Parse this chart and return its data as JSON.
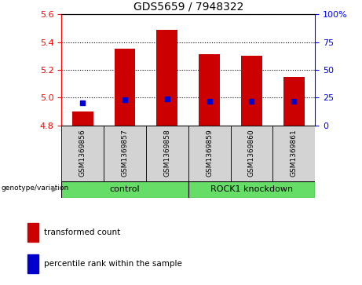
{
  "title": "GDS5659 / 7948322",
  "samples": [
    "GSM1369856",
    "GSM1369857",
    "GSM1369858",
    "GSM1369859",
    "GSM1369860",
    "GSM1369861"
  ],
  "transformed_counts": [
    4.9,
    5.35,
    5.49,
    5.31,
    5.3,
    5.15
  ],
  "percentile_ranks": [
    20,
    23,
    24,
    22,
    22,
    22
  ],
  "ylim_left": [
    4.8,
    5.6
  ],
  "ylim_right": [
    0,
    100
  ],
  "yticks_left": [
    4.8,
    5.0,
    5.2,
    5.4,
    5.6
  ],
  "yticks_right": [
    0,
    25,
    50,
    75,
    100
  ],
  "bar_color": "#cc0000",
  "dot_color": "#0000cc",
  "bar_bottom": 4.8,
  "bar_width": 0.5,
  "sample_row_color": "#d3d3d3",
  "green_color": "#66dd66",
  "legend_items": [
    "transformed count",
    "percentile rank within the sample"
  ],
  "legend_colors": [
    "#cc0000",
    "#0000cc"
  ],
  "genotype_label": "genotype/variation",
  "groups": [
    {
      "label": "control",
      "start": 0,
      "end": 3
    },
    {
      "label": "ROCK1 knockdown",
      "start": 3,
      "end": 6
    }
  ]
}
